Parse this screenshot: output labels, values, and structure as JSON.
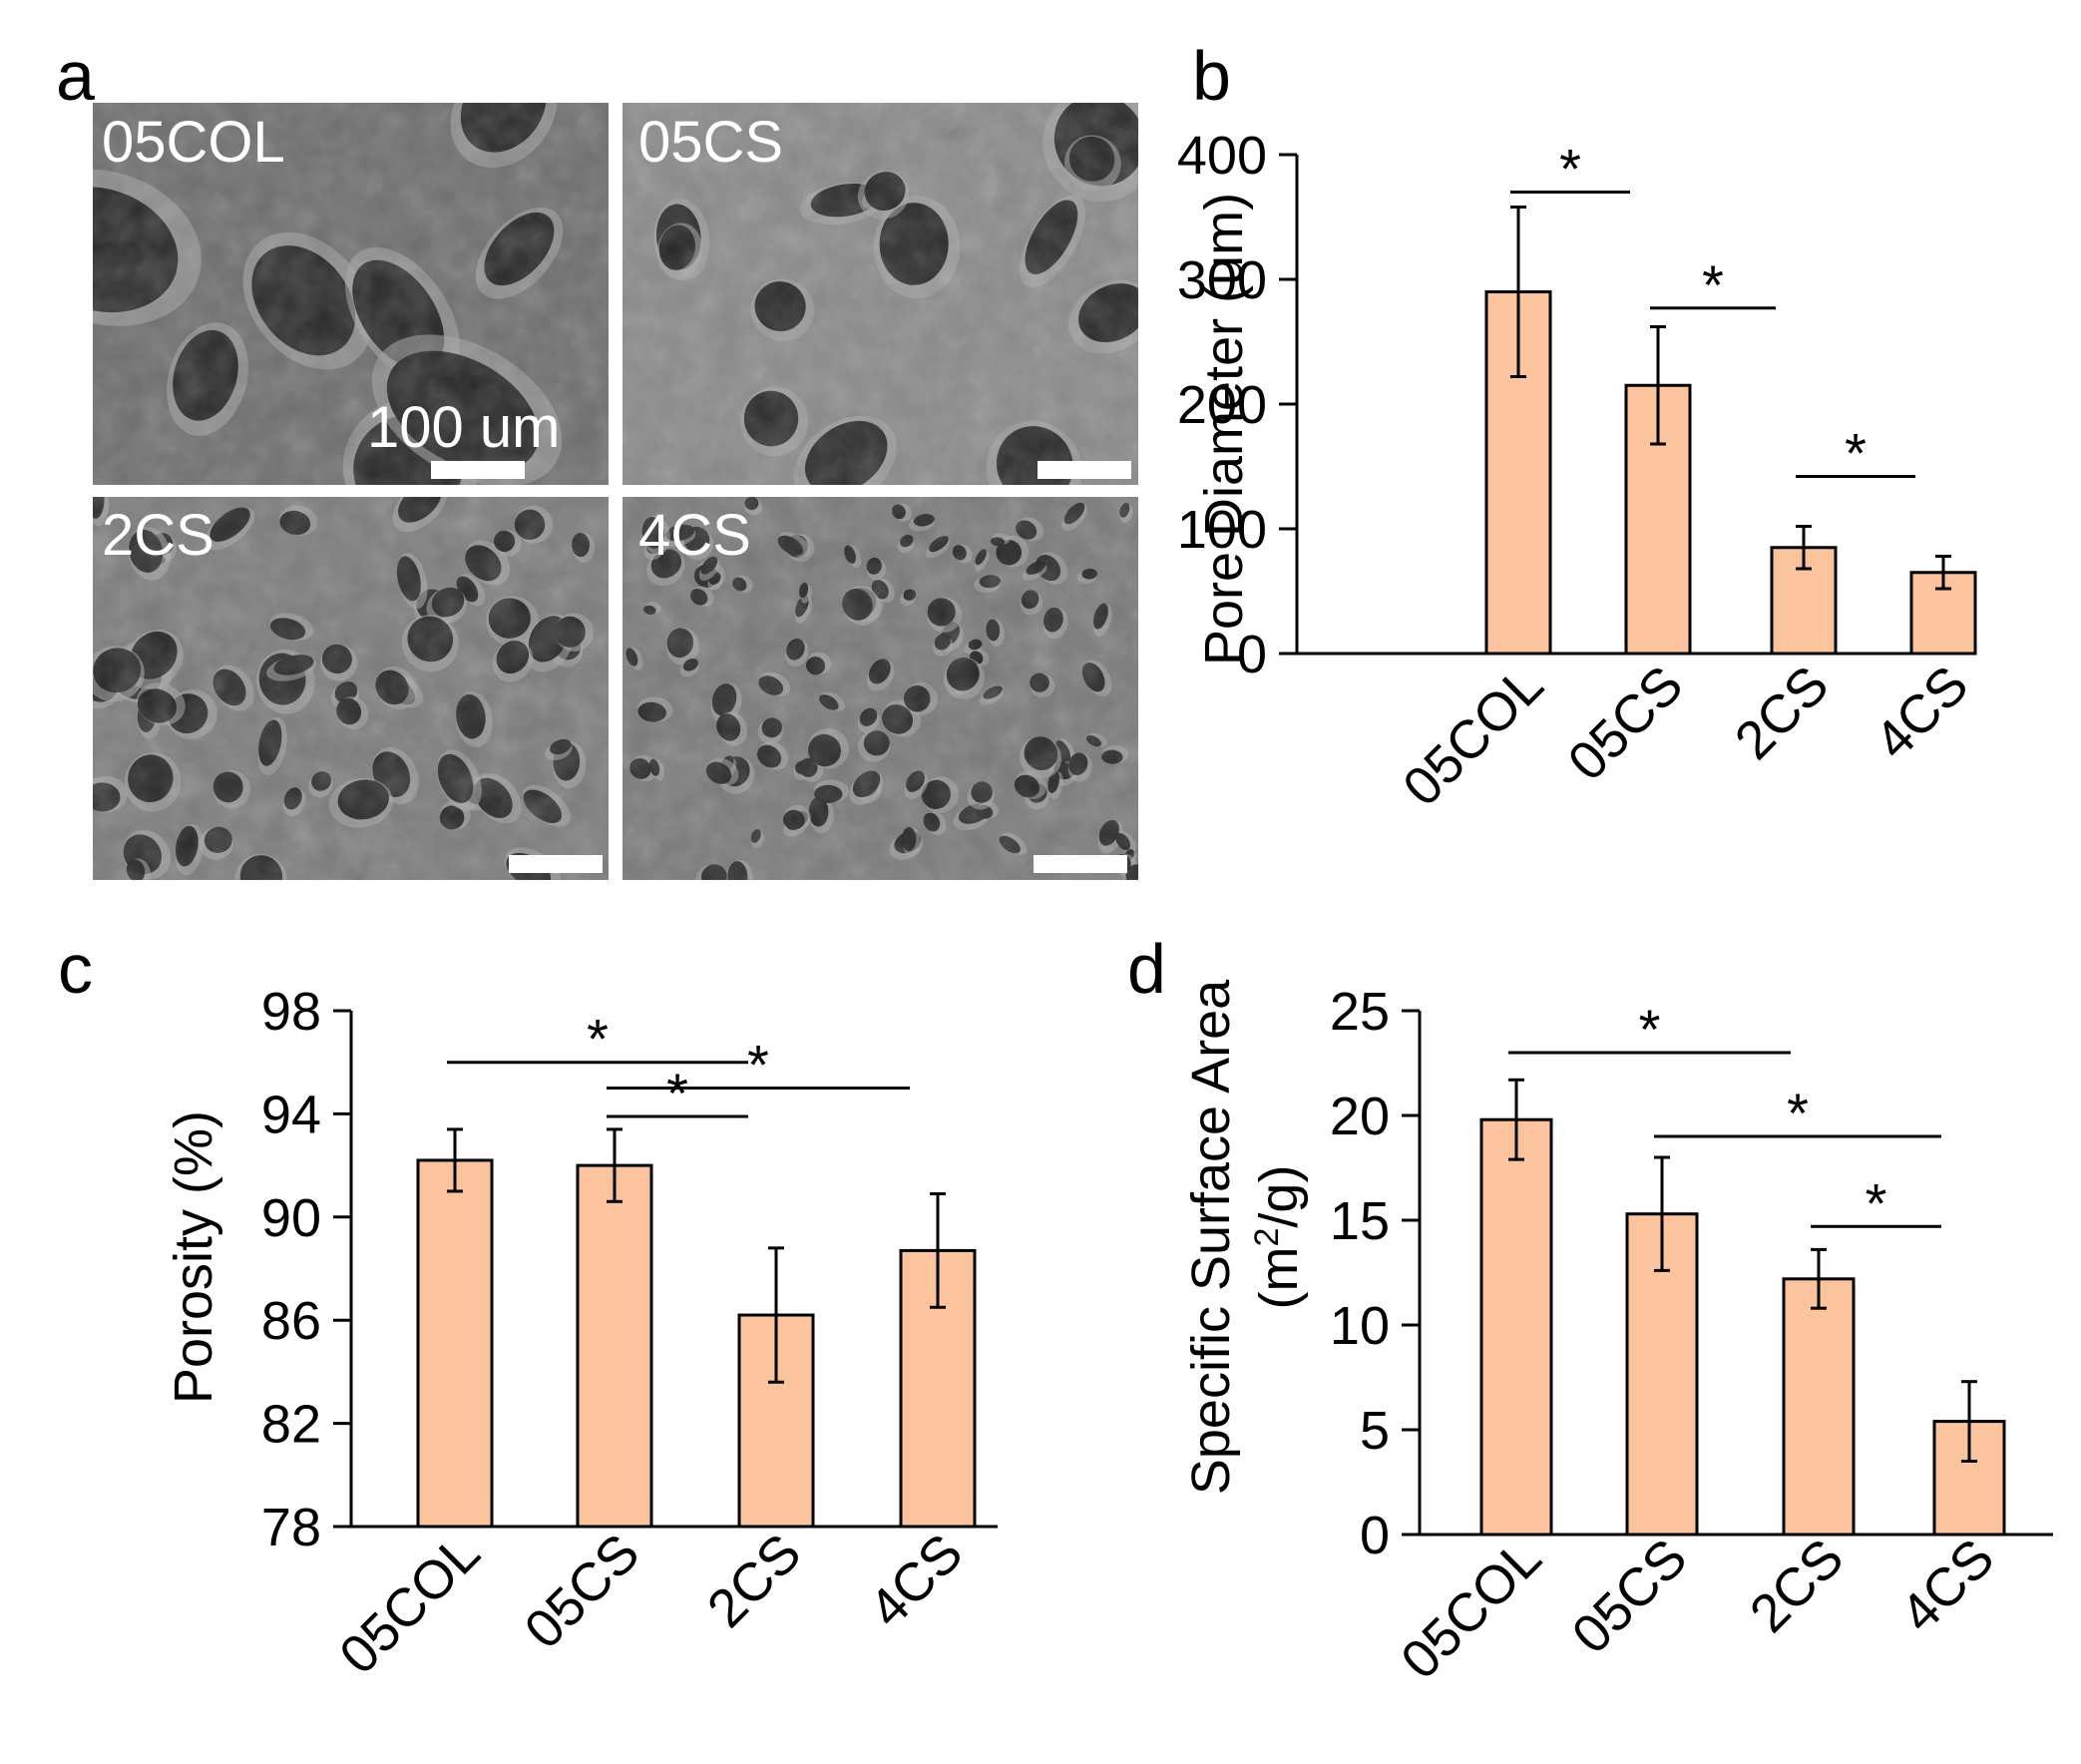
{
  "panel_a": {
    "letter": "a",
    "images": [
      {
        "label": "05COL",
        "tone": "#6e6e6e",
        "pores": "large"
      },
      {
        "label": "05CS",
        "tone": "#8a8a8a",
        "pores": "sheets"
      },
      {
        "label": "2CS",
        "tone": "#7c7c7c",
        "pores": "medium"
      },
      {
        "label": "4CS",
        "tone": "#7a7a7a",
        "pores": "small"
      }
    ],
    "scale_bar_text": "100 um"
  },
  "colors": {
    "bar_fill": "#fcc49c",
    "bar_stroke": "#000000",
    "axis": "#000000"
  },
  "chart_data": [
    {
      "letter": "b",
      "type": "bar",
      "categories": [
        "05COL",
        "05CS",
        "2CS",
        "4CS"
      ],
      "values": [
        290,
        215,
        85,
        65
      ],
      "errors": [
        68,
        47,
        17,
        13
      ],
      "ylabel": "Pore Diameter (um)",
      "ylim": [
        0,
        400
      ],
      "yticks": [
        0,
        100,
        200,
        300,
        400
      ],
      "significance": [
        {
          "from": 0,
          "to": 1,
          "y": 370,
          "label": "*"
        },
        {
          "from": 1,
          "to": 2,
          "y": 277,
          "label": "*"
        },
        {
          "from": 2,
          "to": 3,
          "y": 142,
          "label": "*"
        }
      ]
    },
    {
      "letter": "c",
      "type": "bar",
      "categories": [
        "05COL",
        "05CS",
        "2CS",
        "4CS"
      ],
      "values": [
        92.2,
        92.0,
        86.2,
        88.7
      ],
      "errors": [
        1.2,
        1.4,
        2.6,
        2.2
      ],
      "ylabel": "Porosity (%)",
      "ylim": [
        78,
        98
      ],
      "yticks": [
        78,
        82,
        86,
        90,
        94,
        98
      ],
      "significance": [
        {
          "from": 0,
          "to": 2,
          "y": 96.0,
          "label": "*"
        },
        {
          "from": 1,
          "to": 3,
          "y": 95.0,
          "label": "*"
        },
        {
          "from": 1,
          "to": 2,
          "y": 93.9,
          "label": "*"
        }
      ]
    },
    {
      "letter": "d",
      "type": "bar",
      "categories": [
        "05COL",
        "05CS",
        "2CS",
        "4CS"
      ],
      "values": [
        19.8,
        15.3,
        12.2,
        5.4
      ],
      "errors": [
        1.9,
        2.7,
        1.4,
        1.9
      ],
      "ylabel_line1": "Specific Surface Area",
      "ylabel_line2_pre": "(m",
      "ylabel_line2_sup": "2",
      "ylabel_line2_post": "/g)",
      "ylim": [
        0,
        25
      ],
      "yticks": [
        0,
        5,
        10,
        15,
        20,
        25
      ],
      "significance": [
        {
          "from": 0,
          "to": 2,
          "y": 23.0,
          "label": "*"
        },
        {
          "from": 1,
          "to": 3,
          "y": 19.0,
          "label": "*"
        },
        {
          "from": 2,
          "to": 3,
          "y": 14.7,
          "label": "*"
        }
      ]
    }
  ]
}
